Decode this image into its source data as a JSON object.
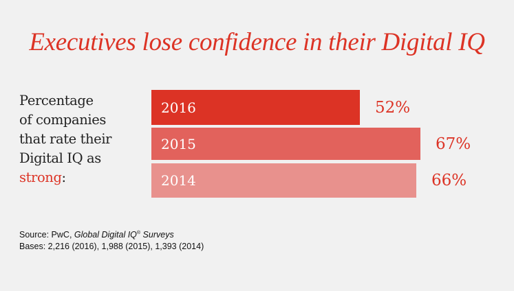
{
  "chart_data": {
    "type": "bar",
    "orientation": "horizontal",
    "title": "Executives lose confidence in their Digital IQ",
    "description": {
      "lines": [
        "Percentage",
        "of companies",
        "that rate their",
        "Digital IQ as"
      ],
      "highlight": "strong",
      "suffix": ":"
    },
    "categories": [
      "2016",
      "2015",
      "2014"
    ],
    "values": [
      52,
      67,
      66
    ],
    "value_labels": [
      "52%",
      "67%",
      "66%"
    ],
    "unit": "%",
    "bar_colors": [
      "#dc3325",
      "#e2625c",
      "#e8918d"
    ],
    "xlabel": "",
    "ylabel": "",
    "grid": false,
    "legend": "none"
  },
  "source": {
    "prefix": "Source: PwC, ",
    "italic": "Global Digital IQ",
    "reg": "®",
    "italic2": " Surveys",
    "bases": "Bases: 2,216 (2016), 1,988 (2015), 1,393 (2014)"
  }
}
